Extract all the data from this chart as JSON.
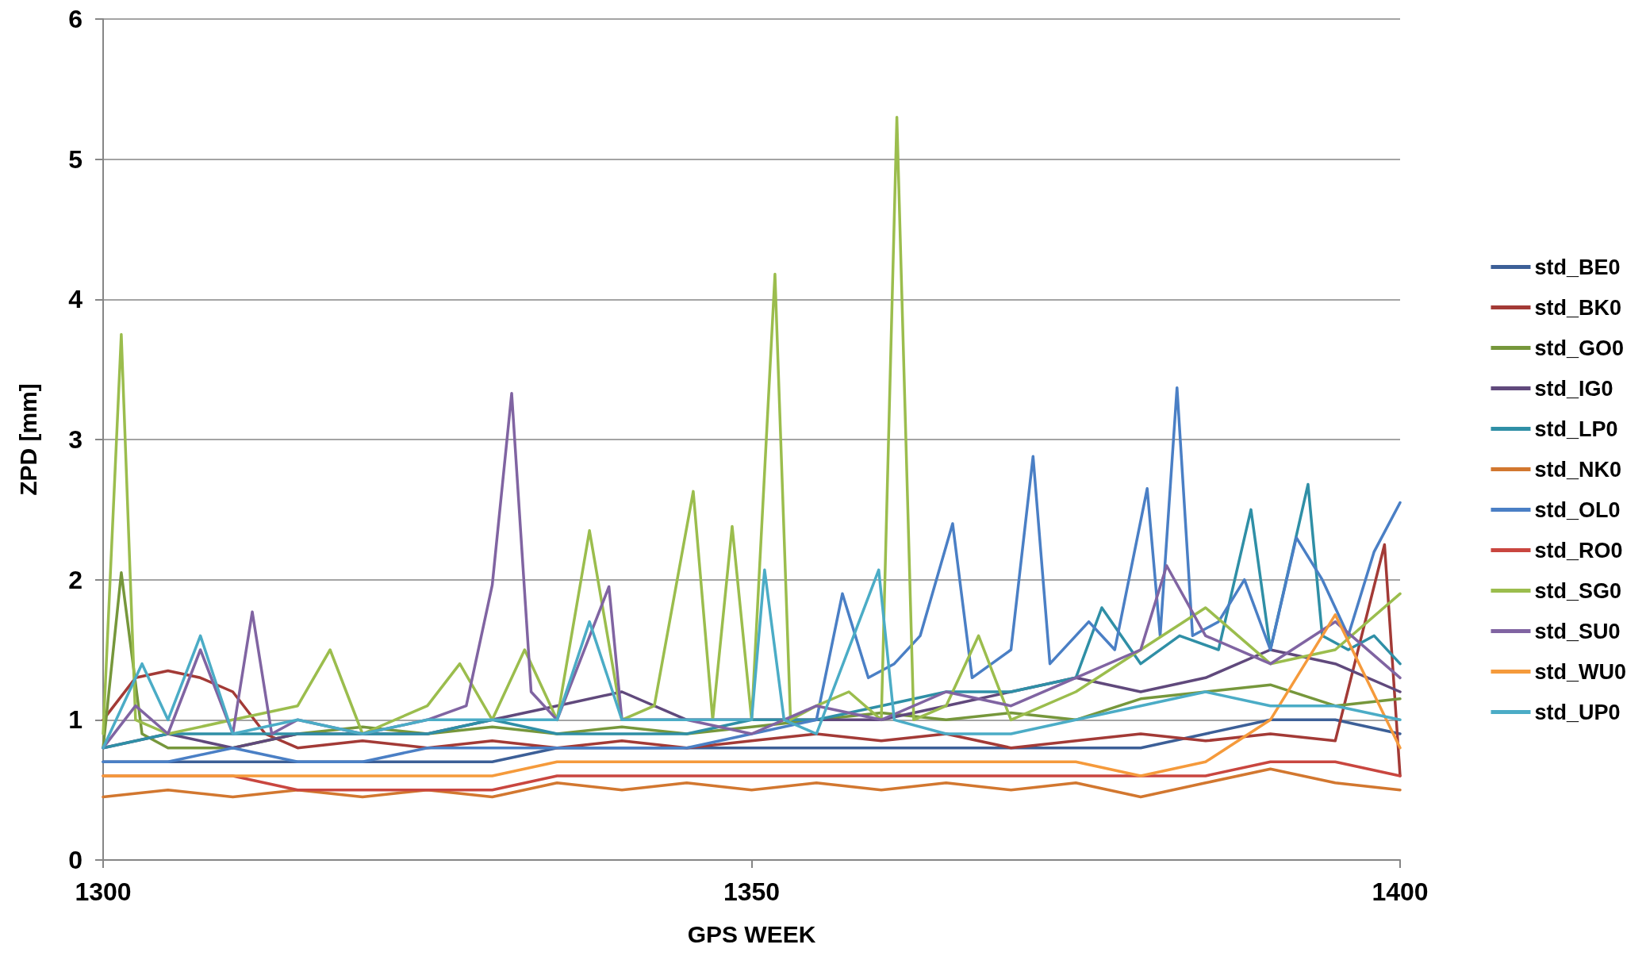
{
  "chart_data": {
    "type": "line",
    "xlabel": "GPS WEEK",
    "ylabel": "ZPD [mm]",
    "xlim": [
      1300,
      1400
    ],
    "xticks": [
      1300,
      1350,
      1400
    ],
    "ylim": [
      0,
      6
    ],
    "yticks": [
      0,
      1,
      2,
      3,
      4,
      5,
      6
    ],
    "grid": "y",
    "legend": "right",
    "marker": "none",
    "line_style": "solid",
    "x": [
      1300,
      1305,
      1310,
      1315,
      1320,
      1325,
      1330,
      1335,
      1340,
      1345,
      1350,
      1355,
      1360,
      1365,
      1370,
      1375,
      1380,
      1385,
      1390,
      1395,
      1400
    ],
    "series": [
      {
        "name": "std_BE0",
        "color": "#3c5f97",
        "values": [
          0.7,
          0.7,
          0.7,
          0.7,
          0.7,
          0.7,
          0.7,
          0.8,
          0.8,
          0.8,
          0.8,
          0.8,
          0.8,
          0.8,
          0.8,
          0.8,
          0.8,
          0.9,
          1.0,
          1.0,
          0.9
        ]
      },
      {
        "name": "std_BK0",
        "color": "#a33a36",
        "x": [
          1300,
          1302.5,
          1305,
          1307.5,
          1310,
          1312.5,
          1315,
          1320,
          1325,
          1330,
          1335,
          1340,
          1345,
          1350,
          1355,
          1360,
          1365,
          1370,
          1375,
          1380,
          1385,
          1390,
          1395,
          1398.8,
          1400
        ],
        "values": [
          1.0,
          1.3,
          1.35,
          1.3,
          1.2,
          0.9,
          0.8,
          0.85,
          0.8,
          0.85,
          0.8,
          0.85,
          0.8,
          0.85,
          0.9,
          0.85,
          0.9,
          0.8,
          0.85,
          0.9,
          0.85,
          0.9,
          0.85,
          2.25,
          0.6
        ]
      },
      {
        "name": "std_GO0",
        "color": "#76973b",
        "x": [
          1300,
          1301.4,
          1303,
          1305,
          1310,
          1315,
          1320,
          1325,
          1330,
          1335,
          1340,
          1345,
          1350,
          1355,
          1360,
          1365,
          1370,
          1375,
          1380,
          1385,
          1390,
          1395,
          1400
        ],
        "values": [
          0.8,
          2.05,
          0.9,
          0.8,
          0.8,
          0.9,
          0.95,
          0.9,
          0.95,
          0.9,
          0.95,
          0.9,
          0.95,
          1.0,
          1.05,
          1.0,
          1.05,
          1.0,
          1.15,
          1.2,
          1.25,
          1.1,
          1.15
        ]
      },
      {
        "name": "std_IG0",
        "color": "#60497c",
        "values": [
          0.8,
          0.9,
          0.8,
          0.9,
          0.9,
          0.9,
          1.0,
          1.1,
          1.2,
          1.0,
          1.0,
          1.0,
          1.0,
          1.1,
          1.2,
          1.3,
          1.2,
          1.3,
          1.5,
          1.4,
          1.2
        ]
      },
      {
        "name": "std_LP0",
        "color": "#2f8fa6",
        "x": [
          1300,
          1305,
          1310,
          1315,
          1320,
          1325,
          1330,
          1335,
          1340,
          1345,
          1350,
          1355,
          1360,
          1365,
          1370,
          1375,
          1377,
          1380,
          1383,
          1386,
          1388.5,
          1390,
          1392.9,
          1394,
          1396,
          1398,
          1400
        ],
        "values": [
          0.8,
          0.9,
          0.9,
          0.9,
          0.9,
          0.9,
          1.0,
          0.9,
          0.9,
          0.9,
          1.0,
          1.0,
          1.1,
          1.2,
          1.2,
          1.3,
          1.8,
          1.4,
          1.6,
          1.5,
          2.5,
          1.5,
          2.68,
          1.6,
          1.5,
          1.6,
          1.4
        ]
      },
      {
        "name": "std_NK0",
        "color": "#d2772f",
        "values": [
          0.45,
          0.5,
          0.45,
          0.5,
          0.45,
          0.5,
          0.45,
          0.55,
          0.5,
          0.55,
          0.5,
          0.55,
          0.5,
          0.55,
          0.5,
          0.55,
          0.45,
          0.55,
          0.65,
          0.55,
          0.5
        ]
      },
      {
        "name": "std_OL0",
        "color": "#4a7fc5",
        "x": [
          1300,
          1305,
          1310,
          1315,
          1320,
          1325,
          1330,
          1335,
          1340,
          1345,
          1350,
          1355,
          1357,
          1359,
          1361,
          1363,
          1365.5,
          1367,
          1370,
          1371.7,
          1373,
          1376,
          1378,
          1380.5,
          1381.5,
          1382.8,
          1384,
          1386,
          1388,
          1390,
          1392,
          1394,
          1396,
          1398,
          1400
        ],
        "values": [
          0.7,
          0.7,
          0.8,
          0.7,
          0.7,
          0.8,
          0.8,
          0.8,
          0.8,
          0.8,
          0.9,
          1.0,
          1.9,
          1.3,
          1.4,
          1.6,
          2.4,
          1.3,
          1.5,
          2.88,
          1.4,
          1.7,
          1.5,
          2.65,
          1.6,
          3.37,
          1.6,
          1.7,
          2.0,
          1.5,
          2.3,
          2.0,
          1.6,
          2.2,
          2.55
        ]
      },
      {
        "name": "std_RO0",
        "color": "#c9463f",
        "values": [
          0.6,
          0.6,
          0.6,
          0.5,
          0.5,
          0.5,
          0.5,
          0.6,
          0.6,
          0.6,
          0.6,
          0.6,
          0.6,
          0.6,
          0.6,
          0.6,
          0.6,
          0.6,
          0.7,
          0.7,
          0.6
        ]
      },
      {
        "name": "std_SG0",
        "color": "#9bbd4d",
        "x": [
          1300,
          1301.4,
          1302.5,
          1305,
          1310,
          1315,
          1317.5,
          1320,
          1325,
          1327.5,
          1330,
          1332.5,
          1335,
          1337.5,
          1340,
          1342.5,
          1345.5,
          1347,
          1348.5,
          1350,
          1351.8,
          1353,
          1355,
          1357.5,
          1360,
          1361.2,
          1362.5,
          1365,
          1367.5,
          1370,
          1375,
          1380,
          1385,
          1390,
          1395,
          1400
        ],
        "values": [
          0.9,
          3.75,
          1.0,
          0.9,
          1.0,
          1.1,
          1.5,
          0.9,
          1.1,
          1.4,
          1.0,
          1.5,
          1.0,
          2.35,
          1.0,
          1.1,
          2.63,
          1.0,
          2.38,
          1.0,
          4.18,
          1.0,
          1.1,
          1.2,
          1.0,
          5.3,
          1.0,
          1.1,
          1.6,
          1.0,
          1.2,
          1.5,
          1.8,
          1.4,
          1.5,
          1.9
        ]
      },
      {
        "name": "std_SU0",
        "color": "#8064a2",
        "x": [
          1300,
          1302.5,
          1305,
          1307.5,
          1310,
          1311.5,
          1313,
          1315,
          1320,
          1325,
          1328,
          1330,
          1331.5,
          1333,
          1335,
          1339,
          1340,
          1345,
          1350,
          1355,
          1360,
          1365,
          1370,
          1375,
          1380,
          1382,
          1385,
          1390,
          1395,
          1400
        ],
        "values": [
          0.8,
          1.1,
          0.9,
          1.5,
          0.9,
          1.77,
          0.9,
          1.0,
          0.9,
          1.0,
          1.1,
          1.96,
          3.33,
          1.2,
          1.0,
          1.95,
          1.0,
          1.0,
          0.9,
          1.1,
          1.0,
          1.2,
          1.1,
          1.3,
          1.5,
          2.1,
          1.6,
          1.4,
          1.7,
          1.3
        ]
      },
      {
        "name": "std_WU0",
        "color": "#f59a3b",
        "values": [
          0.6,
          0.6,
          0.6,
          0.6,
          0.6,
          0.6,
          0.6,
          0.7,
          0.7,
          0.7,
          0.7,
          0.7,
          0.7,
          0.7,
          0.7,
          0.7,
          0.6,
          0.7,
          1.0,
          1.75,
          0.8
        ]
      },
      {
        "name": "std_UP0",
        "color": "#4bacc6",
        "x": [
          1300,
          1303,
          1305,
          1307.5,
          1310,
          1315,
          1320,
          1325,
          1330,
          1335,
          1337.5,
          1340,
          1345,
          1350,
          1351,
          1352.5,
          1355,
          1359.8,
          1361,
          1365,
          1370,
          1375,
          1380,
          1385,
          1390,
          1395,
          1400
        ],
        "values": [
          0.8,
          1.4,
          1.0,
          1.6,
          0.9,
          1.0,
          0.9,
          1.0,
          1.0,
          1.0,
          1.7,
          1.0,
          1.0,
          1.0,
          2.07,
          1.0,
          0.9,
          2.07,
          1.0,
          0.9,
          0.9,
          1.0,
          1.1,
          1.2,
          1.1,
          1.1,
          1.0
        ]
      }
    ]
  }
}
